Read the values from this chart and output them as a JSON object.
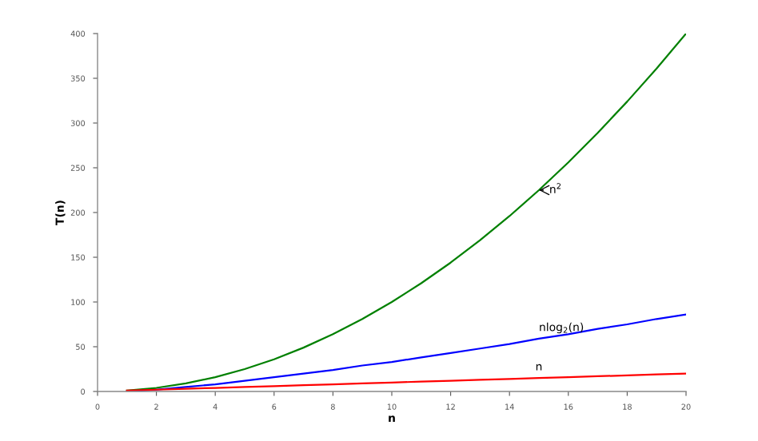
{
  "chart_data": {
    "type": "line",
    "xlabel": "n",
    "ylabel": "T(n)",
    "x": [
      1,
      2,
      3,
      4,
      5,
      6,
      7,
      8,
      9,
      10,
      11,
      12,
      13,
      14,
      15,
      16,
      17,
      18,
      19,
      20
    ],
    "series": [
      {
        "name": "n$^{2}$",
        "color": "#008000",
        "values": [
          1,
          4,
          9,
          16,
          25,
          36,
          49,
          64,
          81,
          100,
          121,
          144,
          169,
          196,
          225,
          256,
          289,
          324,
          361,
          400
        ]
      },
      {
        "name": "nlog$_{2}$(n)",
        "color": "#0000ff",
        "values": [
          0,
          2,
          5,
          8,
          12,
          16,
          20,
          24,
          29,
          33,
          38,
          43,
          48,
          53,
          59,
          64,
          70,
          75,
          81,
          86
        ]
      },
      {
        "name": "n",
        "color": "#ff0000",
        "values": [
          1,
          2,
          3,
          4,
          5,
          6,
          7,
          8,
          9,
          10,
          11,
          12,
          13,
          14,
          15,
          16,
          17,
          18,
          19,
          20
        ]
      }
    ],
    "xlim": [
      0,
      20
    ],
    "xticks": [
      0,
      2,
      4,
      6,
      8,
      10,
      12,
      14,
      16,
      18,
      20
    ],
    "ylim": [
      0,
      400
    ],
    "yticks": [
      0,
      50,
      100,
      150,
      200,
      250,
      300,
      350,
      400
    ],
    "grid": false,
    "legend": false,
    "marker": "none",
    "line_style": "solid"
  }
}
